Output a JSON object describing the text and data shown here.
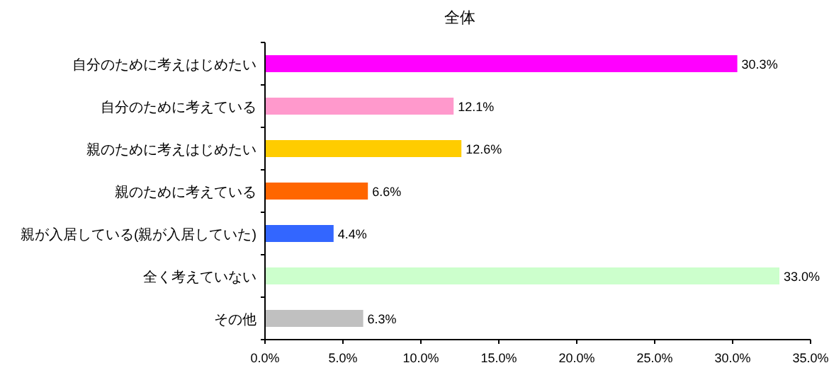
{
  "chart_data": {
    "type": "bar",
    "orientation": "horizontal",
    "title": "全体",
    "categories": [
      "自分のために考えはじめたい",
      "自分のために考えている",
      "親のために考えはじめたい",
      "親のために考えている",
      "親が入居している(親が入居していた)",
      "全く考えていない",
      "その他"
    ],
    "values": [
      30.3,
      12.1,
      12.6,
      6.6,
      4.4,
      33.0,
      6.3
    ],
    "value_labels": [
      "30.3%",
      "12.1%",
      "12.6%",
      "6.6%",
      "4.4%",
      "33.0%",
      "6.3%"
    ],
    "colors": [
      "#ff00ff",
      "#ff99cc",
      "#ffcc00",
      "#ff6600",
      "#3366ff",
      "#ccffcc",
      "#c0c0c0"
    ],
    "xlim": [
      0,
      35
    ],
    "xticks": [
      {
        "value": 0,
        "label": "0.0%"
      },
      {
        "value": 5,
        "label": "5.0%"
      },
      {
        "value": 10,
        "label": "10.0%"
      },
      {
        "value": 15,
        "label": "15.0%"
      },
      {
        "value": 20,
        "label": "20.0%"
      },
      {
        "value": 25,
        "label": "25.0%"
      },
      {
        "value": 30,
        "label": "30.0%"
      },
      {
        "value": 35,
        "label": "35.0%"
      }
    ]
  }
}
